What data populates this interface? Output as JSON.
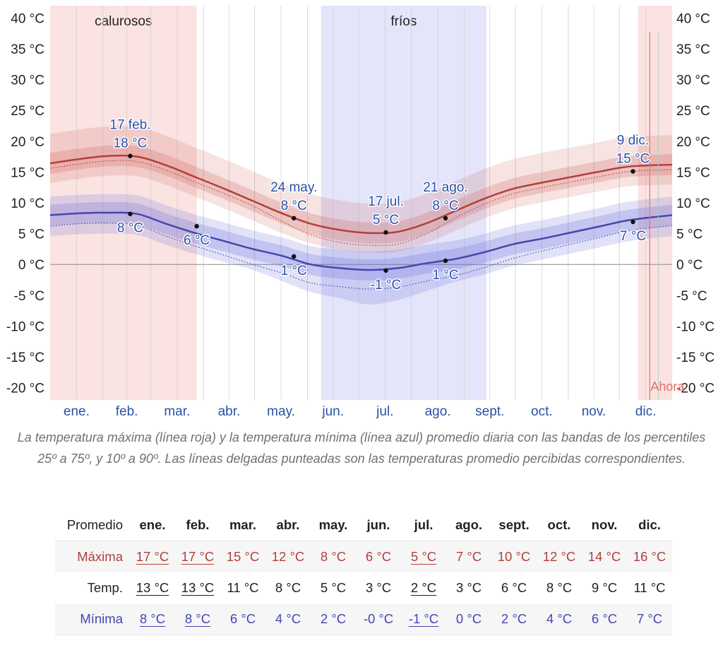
{
  "chart_data": {
    "type": "line",
    "y_axis": {
      "min": -22,
      "max": 42,
      "ticks": [
        40,
        35,
        30,
        25,
        20,
        15,
        10,
        5,
        0,
        -5,
        -10,
        -15,
        -20
      ],
      "unit": "°C"
    },
    "months": [
      "ene.",
      "feb.",
      "mar.",
      "abr.",
      "may.",
      "jun.",
      "jul.",
      "ago.",
      "sept.",
      "oct.",
      "nov.",
      "dic."
    ],
    "seasons": [
      {
        "label": "calurosos",
        "start_day": 0,
        "end_day": 86,
        "color": "#fbe3e2"
      },
      {
        "label": "fríos",
        "start_day": 159,
        "end_day": 256,
        "color": "#e4e5fb"
      },
      {
        "label": "",
        "start_day": 345,
        "end_day": 365,
        "color": "#fbe3e2"
      }
    ],
    "now": {
      "label": "Ahora",
      "day": 356,
      "color": "#e0746c"
    },
    "series": {
      "max": {
        "color": "#b2403c",
        "values": [
          16.4,
          17.1,
          17.6,
          17.5,
          16.1,
          14.2,
          12.3,
          10.3,
          8.3,
          6.6,
          5.6,
          5.1,
          5.3,
          6.7,
          8.7,
          10.7,
          12.3,
          13.3,
          14.2,
          15.1,
          15.9,
          16.2
        ],
        "p25": [
          14.7,
          15.4,
          15.9,
          15.8,
          14.4,
          12.5,
          10.6,
          8.6,
          6.6,
          4.9,
          3.9,
          3.4,
          3.6,
          5.0,
          7.0,
          9.0,
          10.6,
          11.6,
          12.5,
          13.4,
          14.2,
          14.5
        ],
        "p75": [
          18.1,
          18.8,
          19.3,
          19.2,
          17.8,
          15.9,
          14.0,
          12.0,
          10.0,
          8.3,
          7.3,
          6.8,
          7.0,
          8.4,
          10.4,
          12.4,
          14.0,
          15.0,
          15.9,
          16.8,
          17.6,
          17.9
        ],
        "p10": [
          13.2,
          13.9,
          14.4,
          14.3,
          12.9,
          11.0,
          9.1,
          7.1,
          5.1,
          3.4,
          2.4,
          1.9,
          2.1,
          3.5,
          5.5,
          7.5,
          9.1,
          10.1,
          11.0,
          11.9,
          12.7,
          13.0
        ],
        "p90": [
          21.2,
          21.9,
          22.4,
          22.3,
          20.9,
          19.0,
          17.1,
          15.1,
          13.1,
          11.4,
          10.4,
          9.9,
          10.1,
          11.5,
          13.5,
          15.5,
          17.1,
          18.1,
          19.0,
          19.9,
          20.7,
          21.0
        ],
        "feels": [
          15.6,
          16.3,
          16.8,
          16.7,
          15.3,
          13.4,
          11.5,
          9.5,
          7.0,
          4.8,
          3.6,
          3.1,
          3.3,
          5.0,
          7.6,
          9.8,
          11.5,
          12.5,
          13.4,
          14.3,
          15.1,
          15.4
        ]
      },
      "min": {
        "color": "#4546b0",
        "values": [
          8.0,
          8.3,
          8.4,
          8.2,
          6.6,
          5.1,
          3.8,
          2.5,
          1.4,
          0.0,
          -0.6,
          -0.9,
          -0.6,
          0.2,
          0.9,
          2.0,
          3.3,
          4.2,
          5.2,
          6.2,
          7.2,
          8.0
        ],
        "p25": [
          6.3,
          6.6,
          6.7,
          6.5,
          4.9,
          3.4,
          2.1,
          0.8,
          -0.3,
          -1.7,
          -2.3,
          -2.6,
          -2.3,
          -1.5,
          -0.8,
          0.3,
          1.6,
          2.5,
          3.5,
          4.5,
          5.5,
          6.3
        ],
        "p75": [
          9.7,
          10.0,
          10.1,
          9.9,
          8.3,
          6.8,
          5.5,
          4.2,
          3.1,
          1.7,
          1.1,
          0.8,
          1.1,
          1.9,
          2.6,
          3.7,
          5.0,
          5.9,
          6.9,
          7.9,
          8.9,
          9.7
        ],
        "p10": [
          4.6,
          4.9,
          5.0,
          4.8,
          3.2,
          1.7,
          0.4,
          -0.9,
          -2.7,
          -4.5,
          -5.5,
          -6.5,
          -5.8,
          -4.3,
          -2.8,
          -1.6,
          -0.2,
          0.8,
          1.8,
          2.8,
          3.8,
          4.6
        ],
        "p90": [
          11.0,
          11.3,
          11.4,
          11.2,
          9.6,
          8.1,
          6.8,
          5.5,
          4.4,
          3.0,
          2.4,
          2.1,
          2.4,
          3.2,
          3.9,
          5.0,
          6.3,
          7.2,
          8.2,
          9.2,
          10.2,
          11.0
        ],
        "feels": [
          6.2,
          6.6,
          6.7,
          6.4,
          4.6,
          3.0,
          1.5,
          0.0,
          -1.4,
          -3.0,
          -3.6,
          -4.0,
          -3.7,
          -2.7,
          -1.8,
          -0.5,
          1.0,
          2.2,
          3.3,
          4.4,
          5.5,
          6.3
        ]
      }
    },
    "sample_days": [
      0,
      17,
      34,
      51,
      68,
      85,
      102,
      119,
      136,
      153,
      170,
      187,
      204,
      221,
      238,
      255,
      272,
      289,
      306,
      323,
      340,
      357
    ],
    "annotations": [
      {
        "series": "max",
        "day": 47,
        "value": 17.6,
        "date": "17 feb.",
        "label": "18 °C"
      },
      {
        "series": "min",
        "day": 47,
        "value": 8.2,
        "label": "8 °C"
      },
      {
        "series": "min",
        "day": 86,
        "value": 6.2,
        "label": "6 °C"
      },
      {
        "series": "max",
        "day": 143,
        "value": 7.5,
        "date": "24 may.",
        "label": "8 °C"
      },
      {
        "series": "min",
        "day": 143,
        "value": 1.3,
        "label": "1 °C"
      },
      {
        "series": "max",
        "day": 197,
        "value": 5.2,
        "date": "17 jul.",
        "label": "5 °C"
      },
      {
        "series": "min",
        "day": 197,
        "value": -1.0,
        "label": "-1 °C"
      },
      {
        "series": "max",
        "day": 232,
        "value": 7.5,
        "date": "21 ago.",
        "label": "8 °C"
      },
      {
        "series": "min",
        "day": 232,
        "value": 0.6,
        "label": "1 °C"
      },
      {
        "series": "max",
        "day": 342,
        "value": 15.1,
        "date": "9 dic.",
        "label": "15 °C"
      },
      {
        "series": "min",
        "day": 342,
        "value": 6.9,
        "label": "7 °C"
      }
    ]
  },
  "caption": "La temperatura máxima (línea roja) y la temperatura mínima (línea azul) promedio diaria con las bandas de los percentiles 25º a 75º, y 10º a 90º. Las líneas delgadas punteadas son las temperaturas promedio percibidas correspondientes.",
  "table": {
    "header_label": "Promedio",
    "months": [
      "ene.",
      "feb.",
      "mar.",
      "abr.",
      "may.",
      "jun.",
      "jul.",
      "ago.",
      "sept.",
      "oct.",
      "nov.",
      "dic."
    ],
    "rows": [
      {
        "label": "Máxima",
        "values": [
          "17 °C",
          "17 °C",
          "15 °C",
          "12 °C",
          "8 °C",
          "6 °C",
          "5 °C",
          "7 °C",
          "10 °C",
          "12 °C",
          "14 °C",
          "16 °C"
        ],
        "underline": [
          true,
          true,
          false,
          false,
          false,
          false,
          true,
          false,
          false,
          false,
          false,
          false
        ]
      },
      {
        "label": "Temp.",
        "values": [
          "13 °C",
          "13 °C",
          "11 °C",
          "8 °C",
          "5 °C",
          "3 °C",
          "2 °C",
          "3 °C",
          "6 °C",
          "8 °C",
          "9 °C",
          "11 °C"
        ],
        "underline": [
          true,
          true,
          false,
          false,
          false,
          false,
          true,
          false,
          false,
          false,
          false,
          false
        ]
      },
      {
        "label": "Mínima",
        "values": [
          "8 °C",
          "8 °C",
          "6 °C",
          "4 °C",
          "2 °C",
          "-0 °C",
          "-1 °C",
          "0 °C",
          "2 °C",
          "4 °C",
          "6 °C",
          "7 °C"
        ],
        "underline": [
          true,
          true,
          false,
          false,
          false,
          false,
          true,
          false,
          false,
          false,
          false,
          false
        ]
      }
    ]
  }
}
